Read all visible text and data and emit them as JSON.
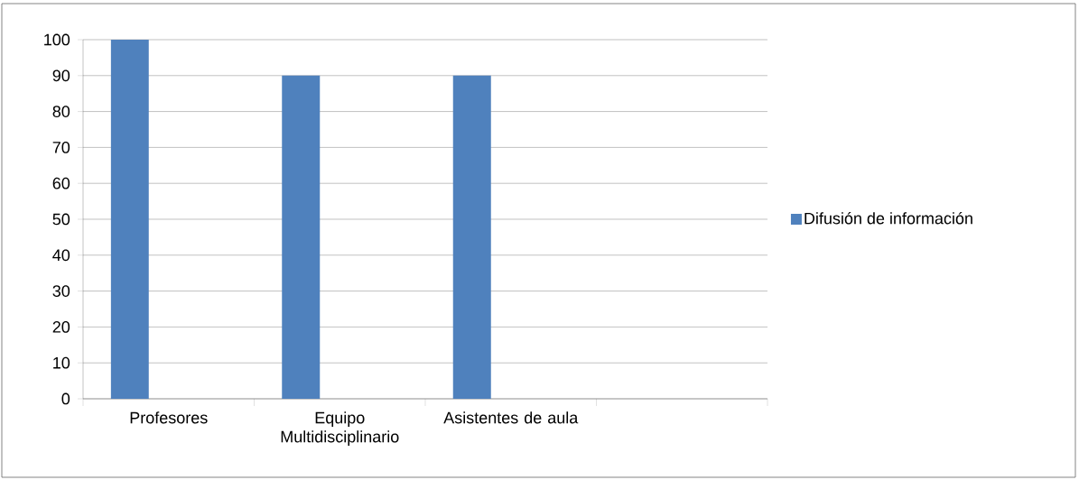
{
  "chart_data": {
    "type": "bar",
    "categories": [
      "Profesores",
      "Equipo Multidisciplinario",
      "Asistentes de aula",
      null
    ],
    "series": [
      {
        "name": "Difusión de información",
        "color": "#4f81bd",
        "values": [
          100,
          90,
          90,
          null
        ]
      }
    ],
    "ylim": [
      0,
      100
    ],
    "yticks": [
      0,
      10,
      20,
      30,
      40,
      50,
      60,
      70,
      80,
      90,
      100
    ],
    "grid": "y",
    "legend": "right"
  }
}
